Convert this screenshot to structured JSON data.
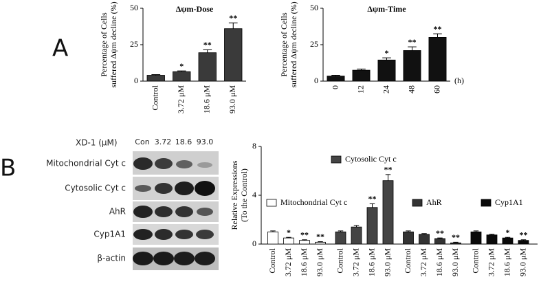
{
  "panel_labels": {
    "a": "A",
    "b": "B"
  },
  "blot": {
    "header": "XD-1 (μM)",
    "lanes": [
      "Con",
      "3.72",
      "18.6",
      "93.0"
    ],
    "rows": [
      "Mitochondrial Cyt c",
      "Cytosolic Cyt c",
      "AhR",
      "Cyp1A1",
      "β-actin"
    ]
  },
  "chart_data": [
    {
      "type": "bar",
      "title": "Δψm-Dose",
      "ylabel": [
        "Percentage of Cells",
        "suffered Δψm decline (%)"
      ],
      "categories": [
        "Control",
        "3.72 μM",
        "18.6 μM",
        "93.0 μM"
      ],
      "values": [
        4,
        6.5,
        19.5,
        36
      ],
      "errors": [
        0.5,
        0.5,
        2,
        4
      ],
      "stars": [
        null,
        "*",
        "**",
        "**"
      ],
      "color": "#3a3a3a",
      "ylim": [
        0,
        50
      ],
      "yticks": [
        0,
        25,
        50
      ]
    },
    {
      "type": "bar",
      "title": "Δψm-Time",
      "ylabel": [
        "Percentage of Cells",
        "suffered Δψm decline (%)"
      ],
      "xlabel": "(h)",
      "categories": [
        "0",
        "12",
        "24",
        "48",
        "60"
      ],
      "values": [
        3.5,
        7.5,
        14.5,
        21,
        30
      ],
      "errors": [
        0.5,
        0.8,
        1.5,
        2.5,
        2.5
      ],
      "stars": [
        null,
        null,
        "*",
        "**",
        "**"
      ],
      "color": "#111111",
      "ylim": [
        0,
        50
      ],
      "yticks": [
        0,
        25,
        50
      ]
    },
    {
      "type": "grouped_bar",
      "ylabel": [
        "Relative Expressions",
        "(To the Control)"
      ],
      "categories": [
        "Control",
        "3.72 μM",
        "18.6 μM",
        "93.0 μM"
      ],
      "ylim": [
        0,
        8
      ],
      "yticks": [
        0,
        4,
        8
      ],
      "series": [
        {
          "name": "Mitochondrial Cyt c",
          "color": "#ffffff",
          "values": [
            1.0,
            0.5,
            0.3,
            0.15
          ],
          "errors": [
            0.08,
            0.05,
            0.05,
            0.05
          ],
          "stars": [
            null,
            "*",
            "**",
            "**"
          ]
        },
        {
          "name": "Cytosolic Cyt c",
          "color": "#444444",
          "values": [
            1.0,
            1.4,
            3.0,
            5.2
          ],
          "errors": [
            0.08,
            0.12,
            0.3,
            0.5
          ],
          "stars": [
            null,
            null,
            "**",
            "**"
          ]
        },
        {
          "name": "AhR",
          "color": "#333333",
          "values": [
            1.0,
            0.8,
            0.45,
            0.1
          ],
          "errors": [
            0.08,
            0.06,
            0.05,
            0.05
          ],
          "stars": [
            null,
            null,
            "**",
            "**"
          ]
        },
        {
          "name": "Cyp1A1",
          "color": "#0a0a0a",
          "values": [
            1.0,
            0.75,
            0.5,
            0.3
          ],
          "errors": [
            0.08,
            0.06,
            0.05,
            0.05
          ],
          "stars": [
            null,
            null,
            "*",
            "**"
          ]
        }
      ]
    }
  ]
}
